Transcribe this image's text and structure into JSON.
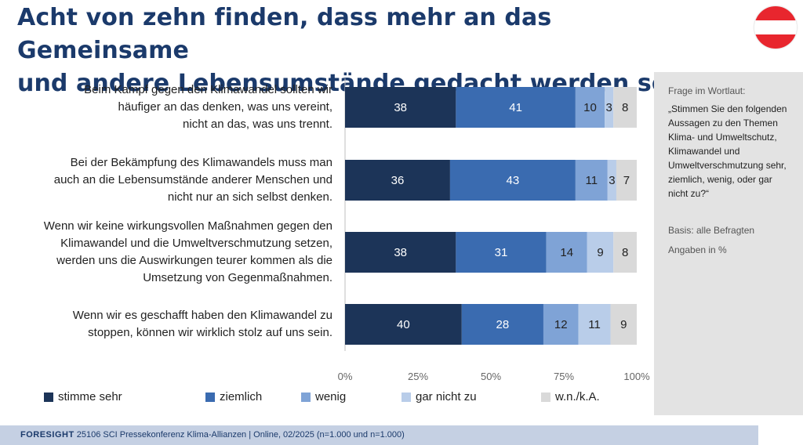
{
  "title_line1": "Acht von zehn finden, dass mehr an das Gemeinsame",
  "title_line2": "und andere Lebensumstände gedacht werden sollte",
  "colors": {
    "title": "#1b3a6b",
    "stimme_sehr": "#1c3458",
    "ziemlich": "#3a6bb0",
    "wenig": "#7fa3d6",
    "gar_nicht_zu": "#b9cde9",
    "wnka": "#d9d9d9",
    "flag_red": "#e8262e"
  },
  "statements": [
    [
      "Beim Kampf gegen den Klimawandel sollten wir",
      "häufiger an das denken, was uns vereint,",
      "nicht an das, was uns trennt."
    ],
    [
      "Bei der Bekämpfung des Klimawandels muss man",
      "auch an die Lebensumstände anderer Menschen und",
      "nicht nur an sich selbst denken."
    ],
    [
      "Wenn wir keine wirkungsvollen Maßnahmen gegen den",
      "Klimawandel und die Umweltverschmutzung setzen,",
      "werden uns die Auswirkungen teurer kommen als die",
      "Umsetzung von Gegenmaßnahmen."
    ],
    [
      "Wenn wir es geschafft haben den Klimawandel zu",
      "stoppen, können wir wirklich stolz auf uns sein."
    ]
  ],
  "chart_data": {
    "type": "bar",
    "orientation": "horizontal",
    "stacked": true,
    "unit": "%",
    "xlim": [
      0,
      100
    ],
    "x_ticks": [
      "0%",
      "25%",
      "50%",
      "75%",
      "100%"
    ],
    "categories": [
      "Beim Kampf gegen den Klimawandel sollten wir häufiger an das denken, was uns vereint, nicht an das, was uns trennt.",
      "Bei der Bekämpfung des Klimawandels muss man auch an die Lebensumstände anderer Menschen und nicht nur an sich selbst denken.",
      "Wenn wir keine wirkungsvollen Maßnahmen gegen den Klimawandel und die Umweltverschmutzung setzen, werden uns die Auswirkungen teurer kommen als die Umsetzung von Gegenmaßnahmen.",
      "Wenn wir es geschafft haben den Klimawandel zu stoppen, können wir wirklich stolz auf uns sein."
    ],
    "series": [
      {
        "name": "stimme sehr",
        "color": "#1c3458",
        "label_color": "#ffffff",
        "values": [
          38,
          36,
          38,
          40
        ]
      },
      {
        "name": "ziemlich",
        "color": "#3a6bb0",
        "label_color": "#ffffff",
        "values": [
          41,
          43,
          31,
          28
        ]
      },
      {
        "name": "wenig",
        "color": "#7fa3d6",
        "label_color": "#222222",
        "values": [
          10,
          11,
          14,
          12
        ]
      },
      {
        "name": "gar nicht zu",
        "color": "#b9cde9",
        "label_color": "#222222",
        "values": [
          3,
          3,
          9,
          11
        ]
      },
      {
        "name": "w.n./k.A.",
        "color": "#d9d9d9",
        "label_color": "#222222",
        "values": [
          8,
          7,
          8,
          9
        ]
      }
    ],
    "legend_position": "bottom",
    "grid": false
  },
  "sidebar": {
    "heading": "Frage im Wortlaut:",
    "question": "„Stimmen Sie den folgenden Aussagen zu den Themen Klima- und Umweltschutz, Klimawandel und Umweltverschmutzung sehr, ziemlich, wenig, oder gar nicht zu?“",
    "basis": "Basis: alle Befragten",
    "unit_note": "Angaben in %"
  },
  "footer": {
    "brand": "FORESIGHT",
    "text": "25106 SCI Pressekonferenz Klima-Allianzen | Online, 02/2025 (n=1.000 und n=1.000)"
  }
}
